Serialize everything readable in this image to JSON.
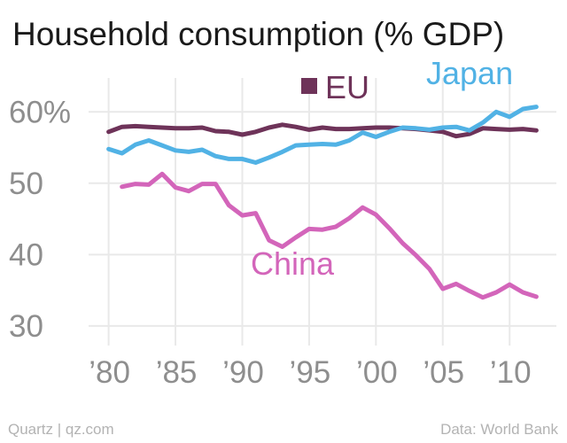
{
  "chart_data": {
    "type": "line",
    "title": "Household consumption (% GDP)",
    "xlabel": "",
    "ylabel": "",
    "xlim": [
      1978.5,
      2013.5
    ],
    "ylim": [
      28,
      65
    ],
    "grid": true,
    "legend": "inline labels",
    "x_ticks": [
      {
        "value": 1980,
        "label": "’80"
      },
      {
        "value": 1985,
        "label": "’85"
      },
      {
        "value": 1990,
        "label": "’90"
      },
      {
        "value": 1995,
        "label": "’95"
      },
      {
        "value": 2000,
        "label": "’00"
      },
      {
        "value": 2005,
        "label": "’05"
      },
      {
        "value": 2010,
        "label": "’10"
      }
    ],
    "y_ticks": [
      {
        "value": 60,
        "label": "60%"
      },
      {
        "value": 50,
        "label": "50"
      },
      {
        "value": 40,
        "label": "40"
      },
      {
        "value": 30,
        "label": "30"
      }
    ],
    "series": [
      {
        "name": "EU",
        "color": "#6e3359",
        "x": [
          1980,
          1981,
          1982,
          1983,
          1984,
          1985,
          1986,
          1987,
          1988,
          1989,
          1990,
          1991,
          1992,
          1993,
          1994,
          1995,
          1996,
          1997,
          1998,
          1999,
          2000,
          2001,
          2002,
          2003,
          2004,
          2005,
          2006,
          2007,
          2008,
          2009,
          2010,
          2011,
          2012
        ],
        "y": [
          57.2,
          57.9,
          58.0,
          57.9,
          57.8,
          57.7,
          57.7,
          57.8,
          57.3,
          57.2,
          56.8,
          57.2,
          57.8,
          58.2,
          57.9,
          57.5,
          57.8,
          57.6,
          57.6,
          57.7,
          57.8,
          57.8,
          57.7,
          57.6,
          57.4,
          57.2,
          56.6,
          56.9,
          57.7,
          57.6,
          57.5,
          57.6,
          57.4
        ]
      },
      {
        "name": "Japan",
        "color": "#51b2e5",
        "x": [
          1980,
          1981,
          1982,
          1983,
          1984,
          1985,
          1986,
          1987,
          1988,
          1989,
          1990,
          1991,
          1992,
          1993,
          1994,
          1995,
          1996,
          1997,
          1998,
          1999,
          2000,
          2001,
          2002,
          2003,
          2004,
          2005,
          2006,
          2007,
          2008,
          2009,
          2010,
          2011,
          2012
        ],
        "y": [
          54.8,
          54.2,
          55.4,
          56.0,
          55.3,
          54.6,
          54.4,
          54.7,
          53.8,
          53.4,
          53.4,
          52.9,
          53.6,
          54.4,
          55.3,
          55.4,
          55.5,
          55.4,
          56.0,
          57.1,
          56.5,
          57.2,
          57.8,
          57.7,
          57.5,
          57.8,
          57.9,
          57.4,
          58.5,
          60.0,
          59.3,
          60.4,
          60.7
        ]
      },
      {
        "name": "China",
        "color": "#d365ba",
        "x": [
          1981,
          1982,
          1983,
          1984,
          1985,
          1986,
          1987,
          1988,
          1989,
          1990,
          1991,
          1992,
          1993,
          1994,
          1995,
          1996,
          1997,
          1998,
          1999,
          2000,
          2001,
          2002,
          2003,
          2004,
          2005,
          2006,
          2007,
          2008,
          2009,
          2010,
          2011,
          2012
        ],
        "y": [
          49.5,
          49.9,
          49.8,
          51.3,
          49.4,
          48.9,
          49.9,
          49.9,
          46.9,
          45.5,
          45.8,
          42.0,
          41.1,
          42.4,
          43.6,
          43.5,
          43.9,
          45.1,
          46.6,
          45.6,
          43.7,
          41.6,
          39.9,
          38.0,
          35.2,
          35.9,
          34.9,
          34.0,
          34.7,
          35.8,
          34.7,
          34.1
        ]
      }
    ]
  },
  "footer": {
    "left": "Quartz | qz.com",
    "right": "Data: World Bank"
  }
}
